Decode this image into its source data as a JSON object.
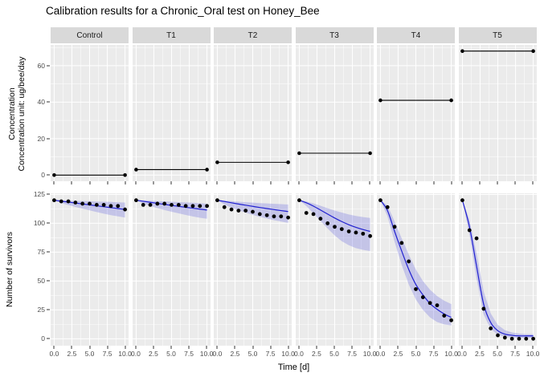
{
  "title": "Calibration results for a Chronic_Oral test on Honey_Bee",
  "chart_data": {
    "type": "line",
    "description": "Faceted calibration plot: top row exposure concentration step profiles, bottom row observed survivors (points) with model fit (blue line) and credible band (ribbon)",
    "facets": [
      "Control",
      "T1",
      "T2",
      "T3",
      "T4",
      "T5"
    ],
    "x": {
      "label": "Time [d]",
      "ticks": [
        "0.0",
        "2.5",
        "5.0",
        "7.5",
        "10.0"
      ],
      "tick_values": [
        0,
        2.5,
        5,
        7.5,
        10
      ],
      "minor": [
        1.25,
        3.75,
        6.25,
        8.75
      ],
      "lim": [
        -0.5,
        10.5
      ]
    },
    "top_row": {
      "ylabel_line1": "Concentration",
      "ylabel_line2": "Concentration unit: ug/bee/day",
      "yticks": [
        "0",
        "20",
        "40",
        "60"
      ],
      "ytick_values": [
        0,
        20,
        40,
        60
      ],
      "yminor": [
        10,
        30,
        50,
        70
      ],
      "ylim": [
        -3.4,
        71.4
      ],
      "profile_x": [
        0,
        10
      ],
      "concentrations": [
        0,
        3,
        7,
        12,
        41,
        68
      ]
    },
    "bottom_row": {
      "ylabel": "Number of survivors",
      "yticks": [
        "0",
        "25",
        "50",
        "75",
        "100",
        "125"
      ],
      "ytick_values": [
        0,
        25,
        50,
        75,
        100,
        125
      ],
      "yminor": [
        12.5,
        37.5,
        62.5,
        87.5,
        112.5
      ],
      "ylim": [
        -6,
        126
      ],
      "time": [
        0,
        1,
        2,
        3,
        4,
        5,
        6,
        7,
        8,
        9,
        10
      ],
      "observed": {
        "Control": [
          120,
          119,
          119,
          118,
          117,
          117,
          116,
          116,
          115,
          115,
          112
        ],
        "T1": [
          120,
          116,
          116,
          117,
          117,
          116,
          116,
          115,
          115,
          115,
          115
        ],
        "T2": [
          120,
          114,
          112,
          111,
          111,
          110,
          108,
          107,
          106,
          106,
          105
        ],
        "T3": [
          120,
          109,
          108,
          104,
          100,
          97,
          95,
          93,
          92,
          91,
          89
        ],
        "T4": [
          120,
          114,
          97,
          83,
          67,
          43,
          36,
          31,
          29,
          20,
          16
        ],
        "T5": [
          120,
          94,
          87,
          26,
          9,
          3,
          1,
          0,
          0,
          0,
          0
        ]
      },
      "fit": {
        "Control": [
          120,
          119.2,
          118.4,
          117.6,
          116.8,
          116,
          115.2,
          114.4,
          113.6,
          112.8,
          112
        ],
        "T1": [
          120,
          119.1,
          118.2,
          117.3,
          116.4,
          115.5,
          114.7,
          113.9,
          113.1,
          112.3,
          111.5
        ],
        "T2": [
          120,
          118.9,
          117.8,
          116.7,
          115.7,
          114.7,
          113.7,
          112.8,
          111.9,
          111,
          110.2
        ],
        "T3": [
          120,
          117.8,
          114.9,
          111.5,
          108,
          104.6,
          101.5,
          98.8,
          96.5,
          94.6,
          93
        ],
        "T4": [
          120,
          111,
          93,
          76,
          60,
          47,
          38,
          30.5,
          25.5,
          21.5,
          18.5
        ],
        "T5": [
          120,
          97,
          63,
          30,
          14,
          7,
          4,
          3,
          2.5,
          2.5,
          2.5
        ]
      },
      "ribbon_high": {
        "Control": [
          120,
          120,
          119.7,
          119.5,
          119.3,
          119.1,
          118.9,
          118.7,
          118.5,
          118.2,
          118
        ],
        "T1": [
          120,
          119.9,
          119.6,
          119.3,
          119,
          118.7,
          118.4,
          118.1,
          117.8,
          117.4,
          117
        ],
        "T2": [
          120,
          119.7,
          119.2,
          118.7,
          118.3,
          117.9,
          117.5,
          117.2,
          116.9,
          116.6,
          116.3
        ],
        "T3": [
          120,
          119,
          117.2,
          115.2,
          113.1,
          111.1,
          109.3,
          107.7,
          106.4,
          105.4,
          104.6
        ],
        "T4": [
          120,
          115.5,
          101.5,
          87,
          73,
          60,
          50,
          42.5,
          37,
          33,
          30
        ],
        "T5": [
          120,
          103,
          74,
          41,
          22,
          12,
          7.5,
          5.5,
          4.5,
          4,
          4
        ]
      },
      "ribbon_low": {
        "Control": [
          120,
          117.5,
          115.8,
          114.2,
          112.7,
          111.2,
          109.8,
          108.4,
          107.1,
          106,
          105
        ],
        "T1": [
          120,
          117,
          115,
          113.2,
          111.5,
          110,
          108.6,
          107.2,
          105.9,
          104.8,
          104
        ],
        "T2": [
          120,
          116.3,
          113.6,
          111.3,
          109.2,
          107.3,
          105.6,
          104.1,
          102.7,
          101.5,
          100.4
        ],
        "T3": [
          120,
          115,
          108.5,
          102,
          95.5,
          89.5,
          84.5,
          81,
          78.5,
          77,
          76
        ],
        "T4": [
          120,
          106,
          84,
          64,
          47,
          34,
          25,
          18.5,
          14.5,
          12.5,
          11.5
        ],
        "T5": [
          120,
          90,
          52,
          21,
          8.5,
          3.5,
          1.8,
          1,
          0.8,
          0.7,
          0.7
        ]
      }
    },
    "colors": {
      "strip_bg": "#d9d9d9",
      "panel_bg": "#ebebeb",
      "grid": "#ffffff",
      "fit_line": "#2020d0",
      "ribbon": "#5050dc",
      "ribbon_opacity": 0.25,
      "point": "#000000",
      "conc_line": "#000000",
      "axis_text": "#4d4d4d"
    },
    "legend": "none"
  }
}
